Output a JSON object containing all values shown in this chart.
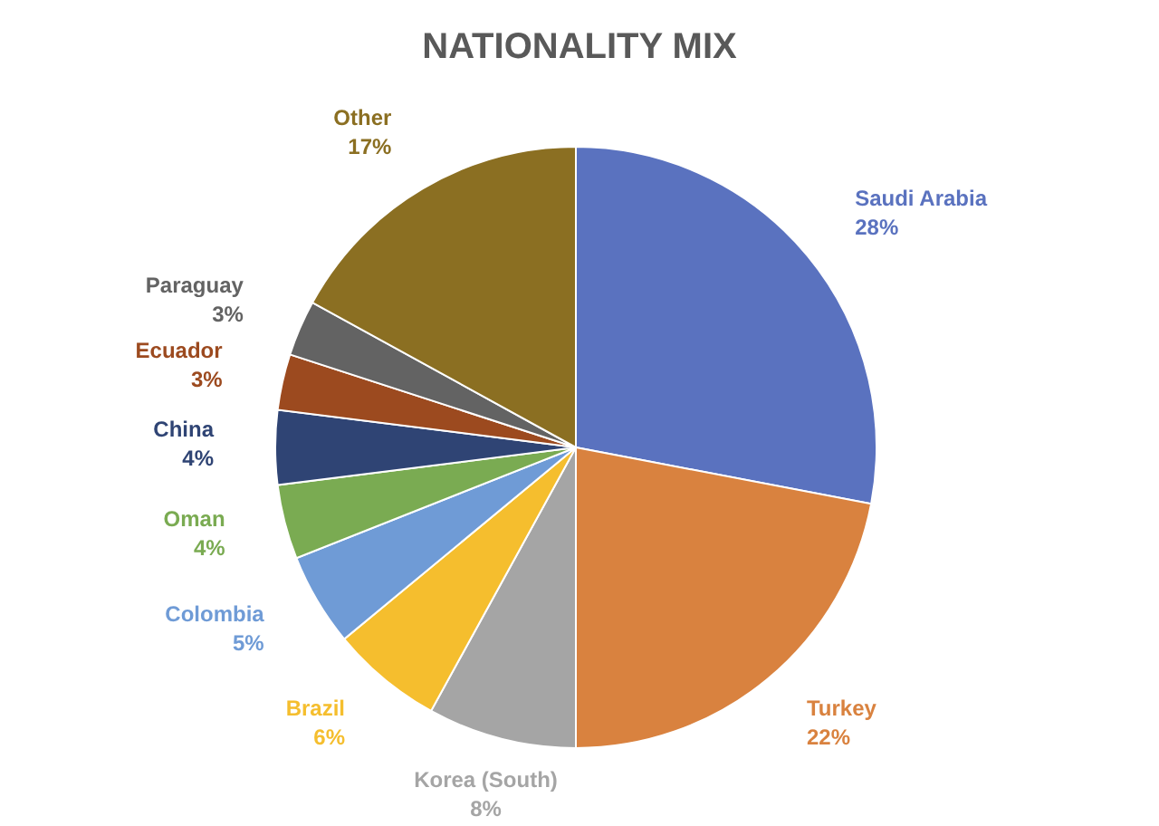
{
  "chart_data": {
    "type": "pie",
    "title": "NATIONALITY MIX",
    "categories": [
      "Saudi Arabia",
      "Turkey",
      "Korea (South)",
      "Brazil",
      "Colombia",
      "Oman",
      "China",
      "Ecuador",
      "Paraguay",
      "Other"
    ],
    "values": [
      28,
      22,
      8,
      6,
      5,
      4,
      4,
      3,
      3,
      17
    ],
    "value_labels": [
      "28%",
      "22%",
      "8%",
      "6%",
      "5%",
      "4%",
      "4%",
      "3%",
      "3%",
      "17%"
    ],
    "colors": [
      "#5a72bf",
      "#d9823f",
      "#a5a5a5",
      "#f5be2e",
      "#6f9bd6",
      "#7aab52",
      "#2f4474",
      "#9c4a1f",
      "#636363",
      "#8b6f22"
    ]
  }
}
